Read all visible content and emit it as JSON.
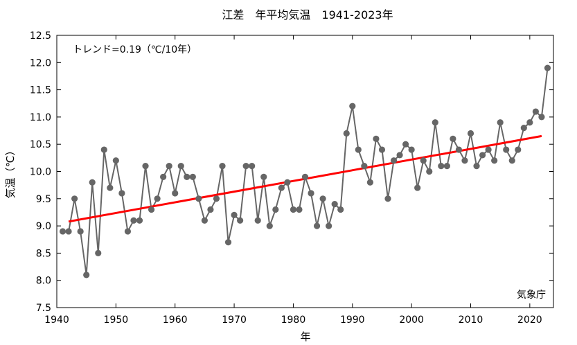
{
  "chart_data": {
    "type": "line",
    "title": "江差　年平均気温　1941-2023年",
    "xlabel": "年",
    "ylabel": "気温（℃）",
    "trend_label": "トレンド=0.19（℃/10年）",
    "source_label": "気象庁",
    "xlim": [
      1940,
      2024
    ],
    "ylim": [
      7.5,
      12.5
    ],
    "xticks": [
      "1940",
      "1950",
      "1960",
      "1970",
      "1980",
      "1990",
      "2000",
      "2010",
      "2020"
    ],
    "yticks": [
      "7.5",
      "8.0",
      "8.5",
      "9.0",
      "9.5",
      "10.0",
      "10.5",
      "11.0",
      "11.5",
      "12.0",
      "12.5"
    ],
    "grid": false,
    "x": [
      1941,
      1942,
      1943,
      1944,
      1945,
      1946,
      1947,
      1948,
      1949,
      1950,
      1951,
      1952,
      1953,
      1954,
      1955,
      1956,
      1957,
      1958,
      1959,
      1960,
      1961,
      1962,
      1963,
      1964,
      1965,
      1966,
      1967,
      1968,
      1969,
      1970,
      1971,
      1972,
      1973,
      1974,
      1975,
      1976,
      1977,
      1978,
      1979,
      1980,
      1981,
      1982,
      1983,
      1984,
      1985,
      1986,
      1987,
      1988,
      1989,
      1990,
      1991,
      1992,
      1993,
      1994,
      1995,
      1996,
      1997,
      1998,
      1999,
      2000,
      2001,
      2002,
      2003,
      2004,
      2005,
      2006,
      2007,
      2008,
      2009,
      2010,
      2011,
      2012,
      2013,
      2014,
      2015,
      2016,
      2017,
      2018,
      2019,
      2020,
      2021,
      2022,
      2023
    ],
    "series": [
      {
        "values": [
          8.9,
          8.9,
          9.5,
          8.9,
          8.1,
          9.8,
          8.5,
          10.4,
          9.7,
          10.2,
          9.6,
          8.9,
          9.1,
          9.1,
          10.1,
          9.3,
          9.5,
          9.9,
          10.1,
          9.6,
          10.1,
          9.9,
          9.9,
          9.5,
          9.1,
          9.3,
          9.5,
          10.1,
          8.7,
          9.2,
          9.1,
          10.1,
          10.1,
          9.1,
          9.9,
          9.0,
          9.3,
          9.7,
          9.8,
          9.3,
          9.3,
          9.9,
          9.6,
          9.0,
          9.5,
          9.0,
          9.4,
          9.3,
          10.7,
          11.2,
          10.4,
          10.1,
          9.8,
          10.6,
          10.4,
          9.5,
          10.2,
          10.3,
          10.5,
          10.4,
          9.7,
          10.2,
          10.0,
          10.9,
          10.1,
          10.1,
          10.6,
          10.4,
          10.2,
          10.7,
          10.1,
          10.3,
          10.4,
          10.2,
          10.9,
          10.4,
          10.2,
          10.4,
          10.8,
          10.9,
          11.1,
          11.0,
          11.9
        ],
        "color": "#666666"
      }
    ],
    "trend": {
      "x": [
        1942,
        2022
      ],
      "y": [
        9.08,
        10.65
      ],
      "color": "#ff0000"
    }
  }
}
